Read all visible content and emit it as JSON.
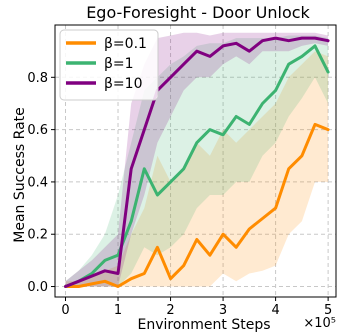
{
  "chart_data": {
    "type": "line",
    "title": "Ego-Foresight - Door Unlock",
    "xlabel": "Environment Steps",
    "ylabel": "Mean Success Rate",
    "x_offset_label": "×10⁵",
    "xlim": [
      -0.2,
      5.15
    ],
    "ylim": [
      -0.04,
      1.0
    ],
    "xticks": [
      0,
      1,
      2,
      3,
      4,
      5
    ],
    "xtick_labels": [
      "0",
      "1",
      "2",
      "3",
      "4",
      "5"
    ],
    "yticks": [
      0.0,
      0.2,
      0.4,
      0.6,
      0.8
    ],
    "ytick_labels": [
      "0.0",
      "0.2",
      "0.4",
      "0.6",
      "0.8"
    ],
    "grid": true,
    "legend_position": "top-left",
    "series": [
      {
        "name": "β=0.1",
        "color": "#ff8c00",
        "x": [
          0,
          0.25,
          0.5,
          0.75,
          1.0,
          1.25,
          1.5,
          1.75,
          2.0,
          2.25,
          2.5,
          2.75,
          3.0,
          3.25,
          3.5,
          3.75,
          4.0,
          4.25,
          4.5,
          4.75,
          5.0
        ],
        "y": [
          0.0,
          0.0,
          0.01,
          0.02,
          0.0,
          0.03,
          0.05,
          0.15,
          0.03,
          0.08,
          0.18,
          0.12,
          0.2,
          0.15,
          0.22,
          0.26,
          0.3,
          0.45,
          0.5,
          0.62,
          0.6
        ],
        "band_low": [
          0.0,
          0.0,
          0.0,
          0.0,
          0.0,
          0.0,
          0.0,
          0.0,
          0.0,
          0.0,
          0.0,
          0.0,
          0.05,
          0.02,
          0.05,
          0.06,
          0.08,
          0.2,
          0.25,
          0.4,
          0.4
        ],
        "band_high": [
          0.02,
          0.02,
          0.05,
          0.06,
          0.08,
          0.2,
          0.3,
          0.5,
          0.4,
          0.45,
          0.55,
          0.5,
          0.6,
          0.55,
          0.6,
          0.65,
          0.7,
          0.8,
          0.85,
          0.9,
          0.88
        ]
      },
      {
        "name": "β=1",
        "color": "#3cb371",
        "x": [
          0,
          0.25,
          0.5,
          0.75,
          1.0,
          1.25,
          1.5,
          1.75,
          2.0,
          2.25,
          2.5,
          2.75,
          3.0,
          3.25,
          3.5,
          3.75,
          4.0,
          4.25,
          4.5,
          4.75,
          5.0
        ],
        "y": [
          0.0,
          0.02,
          0.05,
          0.1,
          0.12,
          0.25,
          0.45,
          0.35,
          0.4,
          0.45,
          0.55,
          0.6,
          0.58,
          0.65,
          0.62,
          0.7,
          0.75,
          0.85,
          0.88,
          0.92,
          0.82
        ],
        "band_low": [
          0.0,
          0.0,
          0.0,
          0.0,
          0.0,
          0.05,
          0.15,
          0.12,
          0.15,
          0.2,
          0.3,
          0.35,
          0.35,
          0.4,
          0.4,
          0.5,
          0.55,
          0.65,
          0.72,
          0.8,
          0.7
        ],
        "band_high": [
          0.02,
          0.06,
          0.12,
          0.2,
          0.35,
          0.55,
          0.75,
          0.8,
          0.85,
          0.88,
          0.92,
          0.93,
          0.93,
          0.95,
          0.95,
          0.95,
          0.95,
          0.96,
          0.96,
          0.96,
          0.95
        ]
      },
      {
        "name": "β=10",
        "color": "#800080",
        "x": [
          0,
          0.25,
          0.5,
          0.75,
          1.0,
          1.25,
          1.5,
          1.75,
          2.0,
          2.25,
          2.5,
          2.75,
          3.0,
          3.25,
          3.5,
          3.75,
          4.0,
          4.25,
          4.5,
          4.75,
          5.0
        ],
        "y": [
          0.0,
          0.02,
          0.04,
          0.06,
          0.05,
          0.45,
          0.6,
          0.75,
          0.8,
          0.85,
          0.9,
          0.88,
          0.92,
          0.93,
          0.9,
          0.94,
          0.95,
          0.94,
          0.95,
          0.95,
          0.94
        ],
        "band_low": [
          0.0,
          0.0,
          0.0,
          0.0,
          0.0,
          0.2,
          0.35,
          0.55,
          0.65,
          0.75,
          0.8,
          0.8,
          0.85,
          0.88,
          0.85,
          0.9,
          0.9,
          0.9,
          0.92,
          0.93,
          0.92
        ],
        "band_high": [
          0.02,
          0.06,
          0.1,
          0.15,
          0.2,
          0.7,
          0.85,
          0.95,
          0.96,
          0.97,
          0.97,
          0.96,
          0.97,
          0.97,
          0.97,
          0.97,
          0.97,
          0.97,
          0.97,
          0.97,
          0.96
        ]
      }
    ]
  }
}
